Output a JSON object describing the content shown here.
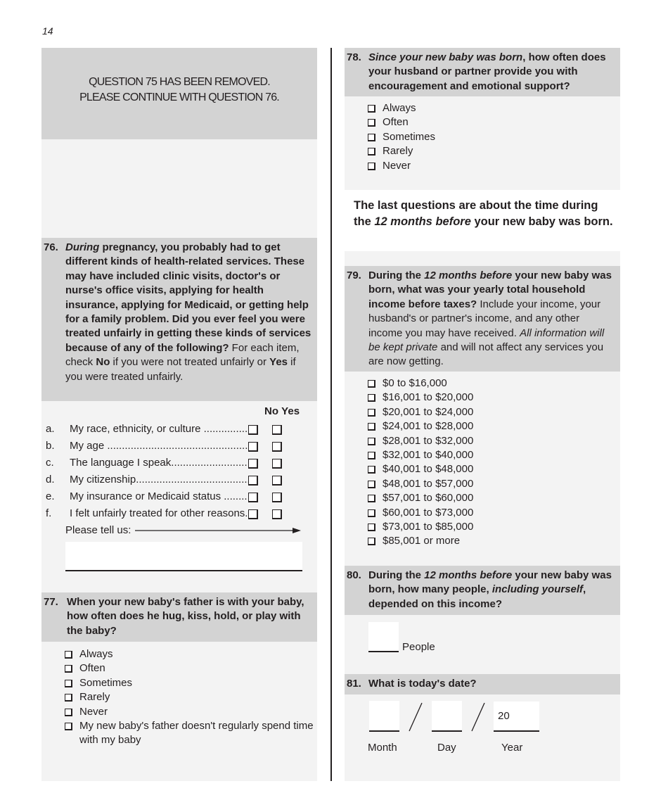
{
  "page_number": "14",
  "q75": {
    "line1": "QUESTION 75 HAS BEEN REMOVED.",
    "line2": "PLEASE CONTINUE WITH QUESTION 76."
  },
  "q76": {
    "number": "76.",
    "text": [
      {
        "t": "During",
        "b": true,
        "i": true
      },
      {
        "t": " pregnancy, you probably had to get different kinds of health-related services. These may have included clinic visits, doctor's or nurse's office visits, applying for health insurance, applying for Medicaid, or getting help for a family problem. Did you ever feel you were treated unfairly in getting these kinds of services because of any of the following?",
        "b": true
      },
      {
        "t": " For each item, check "
      },
      {
        "t": "No",
        "b": true
      },
      {
        "t": " if you were not treated unfairly or "
      },
      {
        "t": "Yes",
        "b": true
      },
      {
        "t": " if you were treated unfairly."
      }
    ],
    "col_no": "No",
    "col_yes": "Yes",
    "items": [
      {
        "letter": "a.",
        "label": "My race, ethnicity, or culture ........................................"
      },
      {
        "letter": "b.",
        "label": "My age ..........................................................................................."
      },
      {
        "letter": "c.",
        "label": "The language I speak......................................................."
      },
      {
        "letter": "d.",
        "label": "My citizenship..............................................................................."
      },
      {
        "letter": "e.",
        "label": "My insurance or Medicaid status ..............................."
      },
      {
        "letter": "f.",
        "label": "I felt unfairly treated for other reasons....................."
      }
    ],
    "tell_us": "Please tell us:"
  },
  "q77": {
    "number": "77.",
    "text": [
      {
        "t": "When your new baby's father is with your baby, how often does he hug, kiss, hold, or play with the baby?",
        "b": true
      }
    ],
    "options": [
      "Always",
      "Often",
      "Sometimes",
      "Rarely",
      "Never",
      "My new baby's father doesn't regularly spend time with my baby"
    ]
  },
  "q78": {
    "number": "78.",
    "text": [
      {
        "t": "Since your new baby was born",
        "b": true,
        "i": true
      },
      {
        "t": ", how often does your husband or partner provide you with encouragement and emotional support?",
        "b": true
      }
    ],
    "options": [
      "Always",
      "Often",
      "Sometimes",
      "Rarely",
      "Never"
    ]
  },
  "intro": [
    {
      "t": "The last questions are about the time during the ",
      "b": true
    },
    {
      "t": "12 months before",
      "b": true,
      "i": true
    },
    {
      "t": " your new baby was born.",
      "b": true
    }
  ],
  "q79": {
    "number": "79.",
    "text": [
      {
        "t": "During the ",
        "b": true
      },
      {
        "t": "12 months before",
        "b": true,
        "i": true
      },
      {
        "t": " your new baby was born, what was your yearly total household income before taxes?",
        "b": true
      },
      {
        "t": " Include your income, your husband's or partner's income, and any other income you may have received. "
      },
      {
        "t": "All information will be kept private",
        "i": true
      },
      {
        "t": " and will not affect any services you are now getting."
      }
    ],
    "options": [
      "$0 to $16,000",
      "$16,001 to $20,000",
      "$20,001 to $24,000",
      "$24,001 to $28,000",
      "$28,001 to $32,000",
      "$32,001 to $40,000",
      "$40,001 to $48,000",
      "$48,001 to $57,000",
      "$57,001 to $60,000",
      "$60,001 to $73,000",
      "$73,001 to $85,000",
      "$85,001 or more"
    ]
  },
  "q80": {
    "number": "80.",
    "text": [
      {
        "t": "During the ",
        "b": true
      },
      {
        "t": "12 months before",
        "b": true,
        "i": true
      },
      {
        "t": " your new baby was born, how many people, ",
        "b": true
      },
      {
        "t": "including yourself",
        "b": true,
        "i": true
      },
      {
        "t": ", depended on this income?",
        "b": true
      }
    ],
    "unit": "People"
  },
  "q81": {
    "number": "81.",
    "text": [
      {
        "t": "What is today's date?",
        "b": true
      }
    ],
    "month_label": "Month",
    "day_label": "Day",
    "year_label": "Year",
    "year_prefix": "20"
  }
}
